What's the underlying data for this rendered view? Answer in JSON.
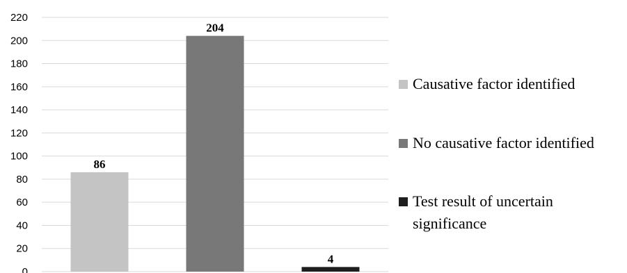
{
  "chart_data": {
    "type": "bar",
    "categories": [
      "Causative factor identified",
      "No causative factor identified",
      "Test result of uncertain significance"
    ],
    "values": [
      86,
      204,
      4
    ],
    "data_labels": [
      "86",
      "204",
      "4"
    ],
    "colors": [
      "#c4c4c4",
      "#787878",
      "#1e1e1e"
    ],
    "ylim": [
      0,
      220
    ],
    "yticks": [
      0,
      20,
      40,
      60,
      80,
      100,
      120,
      140,
      160,
      180,
      200,
      220
    ],
    "grid": true,
    "title": "",
    "xlabel": "",
    "ylabel": "",
    "legend": {
      "placement": "right",
      "entries": [
        {
          "lines": [
            "Causative factor identified"
          ],
          "color": "#c4c4c4"
        },
        {
          "lines": [
            "No causative factor identified"
          ],
          "color": "#787878"
        },
        {
          "lines": [
            "Test result of uncertain",
            "significance"
          ],
          "color": "#1e1e1e"
        }
      ]
    }
  }
}
